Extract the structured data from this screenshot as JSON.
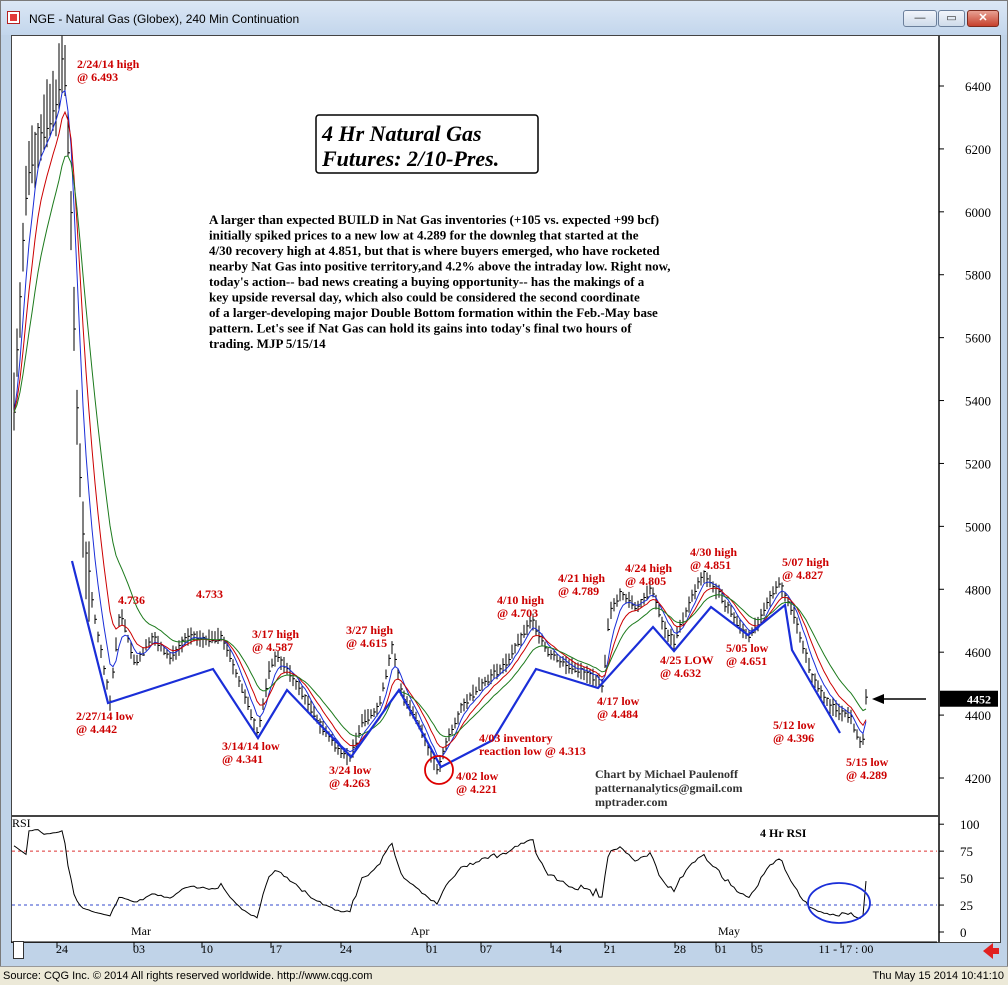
{
  "window": {
    "title": "NGE - Natural Gas (Globex), 240 Min Continuation",
    "minimize_label": "—",
    "restore_label": "▭",
    "close_label": "✕"
  },
  "status": {
    "left": "Source: CQG Inc. © 2014 All rights reserved worldwide. http://www.cqg.com",
    "right": "Thu May 15 2014 10:41:10"
  },
  "price_panel": {
    "y_ticks": [
      "6400",
      "6200",
      "6000",
      "5800",
      "5600",
      "5400",
      "5200",
      "5000",
      "4800",
      "4600",
      "4400",
      "4200"
    ],
    "last_price": "4452"
  },
  "rsi_panel": {
    "label": "RSI",
    "title": "4 Hr RSI",
    "y_ticks": [
      "100",
      "75",
      "50",
      "25",
      "0"
    ]
  },
  "x_axis": {
    "months": [
      "Mar",
      "Apr",
      "May"
    ],
    "days": [
      "24",
      "03",
      "10",
      "17",
      "24",
      "01",
      "07",
      "14",
      "21",
      "28",
      "01",
      "05",
      "11 - 17 : 00"
    ]
  },
  "chart_box": {
    "line1": "4 Hr Natural Gas",
    "line2": "Futures:  2/10-Pres."
  },
  "commentary": [
    "A larger than expected BUILD in Nat Gas inventories (+105 vs. expected +99 bcf)",
    "initially spiked prices to a new low at 4.289 for the downleg that started at the",
    "4/30 recovery high at 4.851, but that is where buyers emerged, who have rocketed",
    "nearby Nat Gas into positive territory,and 4.2% above the intraday low. Right now,",
    "today's action-- bad news creating a buying opportunity-- has the makings of a",
    "key upside reversal day, which also could be considered the second coordinate",
    "of a larger-developing major Double Bottom formation within the Feb.-May base",
    "pattern. Let's see if Nat Gas can hold its gains into today's final two hours of",
    "trading.  MJP  5/15/14"
  ],
  "credit": [
    "Chart by Michael Paulenoff",
    "patternanalytics@gmail.com",
    "mptrader.com"
  ],
  "annotations": [
    {
      "text": [
        "2/24/14 high",
        "@ 6.493"
      ]
    },
    {
      "text": [
        "4.736"
      ]
    },
    {
      "text": [
        "4.733"
      ]
    },
    {
      "text": [
        "3/17 high",
        "@ 4.587"
      ]
    },
    {
      "text": [
        "3/27 high",
        "@ 4.615"
      ]
    },
    {
      "text": [
        "4/10 high",
        "@ 4.703"
      ]
    },
    {
      "text": [
        "4/21 high",
        "@ 4.789"
      ]
    },
    {
      "text": [
        "4/24 high",
        "@ 4.805"
      ]
    },
    {
      "text": [
        "4/30 high",
        "@ 4.851"
      ]
    },
    {
      "text": [
        "5/07 high",
        "@ 4.827"
      ]
    },
    {
      "text": [
        "2/27/14 low",
        "@ 4.442"
      ]
    },
    {
      "text": [
        "3/14/14 low",
        "@ 4.341"
      ]
    },
    {
      "text": [
        "3/24 low",
        "@ 4.263"
      ]
    },
    {
      "text": [
        "4/03 inventory",
        "reaction low @ 4.313"
      ]
    },
    {
      "text": [
        "4/02 low",
        "@ 4.221"
      ]
    },
    {
      "text": [
        "4/17 low",
        "@ 4.484"
      ]
    },
    {
      "text": [
        "4/25 LOW",
        "@ 4.632"
      ]
    },
    {
      "text": [
        "5/05 low",
        "@ 4.651"
      ]
    },
    {
      "text": [
        "5/12 low",
        "@ 4.396"
      ]
    },
    {
      "text": [
        "5/15 low",
        "@ 4.289"
      ]
    }
  ],
  "colors": {
    "annotation": "#cc0000",
    "pattern_line": "#1a2ed8",
    "ma_blue": "#1a2ed8",
    "ma_red": "#cc0000",
    "ma_green": "#1c7a1c",
    "circle_red": "#dd0000",
    "circle_blue": "#1a2ed8",
    "bars": "#000000"
  },
  "chart_data": {
    "type": "line",
    "title": "4 Hr Natural Gas Futures: 2/10-Pres.",
    "instrument": "NGE - Natural Gas (Globex), 240 Min Continuation",
    "y_range": [
      4100,
      6500
    ],
    "rsi_range": [
      0,
      100
    ],
    "rsi_levels": [
      75,
      25
    ],
    "x": [
      "2/24",
      "2/27",
      "3/05",
      "3/10",
      "3/14",
      "3/17",
      "3/24",
      "3/27",
      "4/02",
      "4/03",
      "4/10",
      "4/17",
      "4/21",
      "4/24",
      "4/25",
      "4/30",
      "5/05",
      "5/07",
      "5/12",
      "5/15"
    ],
    "series": [
      {
        "values": [
          6493,
          4442,
          4736,
          4733,
          4341,
          4587,
          4263,
          4615,
          4221,
          4313,
          4703,
          4484,
          4789,
          4805,
          4632,
          4851,
          4651,
          4827,
          4396,
          4289
        ]
      }
    ]
  }
}
